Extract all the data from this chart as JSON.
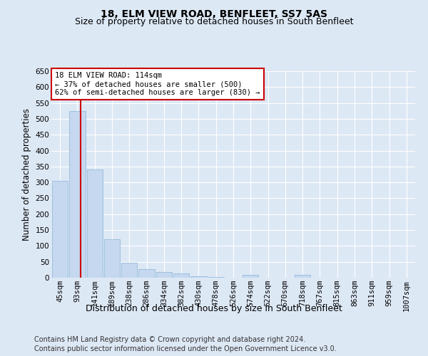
{
  "title": "18, ELM VIEW ROAD, BENFLEET, SS7 5AS",
  "subtitle": "Size of property relative to detached houses in South Benfleet",
  "xlabel": "Distribution of detached houses by size in South Benfleet",
  "ylabel": "Number of detached properties",
  "footer_line1": "Contains HM Land Registry data © Crown copyright and database right 2024.",
  "footer_line2": "Contains public sector information licensed under the Open Government Licence v3.0.",
  "categories": [
    "45sqm",
    "93sqm",
    "141sqm",
    "189sqm",
    "238sqm",
    "286sqm",
    "334sqm",
    "382sqm",
    "430sqm",
    "478sqm",
    "526sqm",
    "574sqm",
    "622sqm",
    "670sqm",
    "718sqm",
    "767sqm",
    "815sqm",
    "863sqm",
    "911sqm",
    "959sqm",
    "1007sqm"
  ],
  "values": [
    305,
    525,
    340,
    120,
    48,
    28,
    18,
    13,
    5,
    3,
    0,
    8,
    0,
    0,
    8,
    0,
    0,
    0,
    0,
    0,
    0
  ],
  "bar_color": "#c5d8ef",
  "bar_edge_color": "#8ab4d8",
  "property_line_x": 1.2,
  "property_line_color": "#cc0000",
  "annotation_text": "18 ELM VIEW ROAD: 114sqm\n← 37% of detached houses are smaller (500)\n62% of semi-detached houses are larger (830) →",
  "ylim_max": 650,
  "ytick_step": 50,
  "background_color": "#dde8f5",
  "grid_color": "#ffffff",
  "title_fontsize": 10,
  "subtitle_fontsize": 9,
  "ylabel_fontsize": 8.5,
  "xlabel_fontsize": 9,
  "tick_fontsize": 7.5,
  "annotation_fontsize": 7.5,
  "footer_fontsize": 7
}
